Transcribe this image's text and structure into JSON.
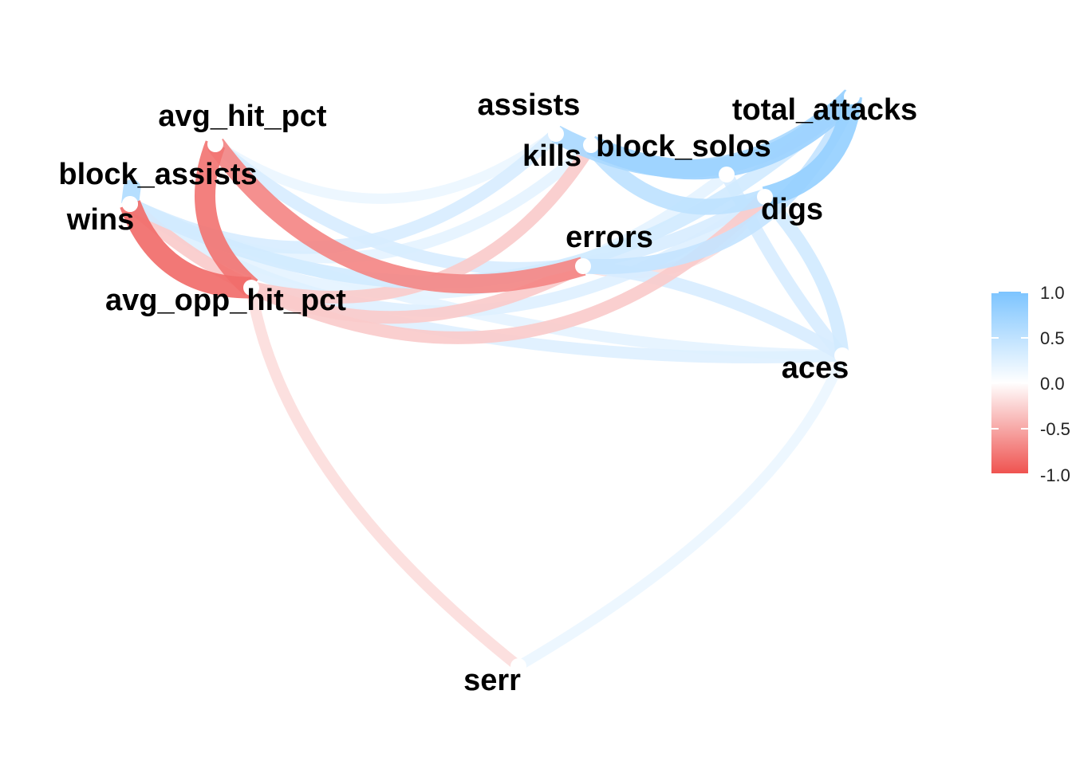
{
  "chart_data": {
    "type": "correlation-network",
    "legend": {
      "colors": [
        "#ef5350",
        "#ffffff",
        "#7cc4ff"
      ],
      "range": [
        -1,
        1
      ],
      "ticks": [
        "1.0",
        "0.5",
        "0.0",
        "-0.5",
        "-1.0"
      ]
    },
    "nodes": [
      {
        "id": "wins",
        "label": "wins"
      },
      {
        "id": "block_assists",
        "label": "block_assists"
      },
      {
        "id": "avg_hit_pct",
        "label": "avg_hit_pct"
      },
      {
        "id": "avg_opp_hit_pct",
        "label": "avg_opp_hit_pct"
      },
      {
        "id": "assists",
        "label": "assists"
      },
      {
        "id": "kills",
        "label": "kills"
      },
      {
        "id": "block_solos",
        "label": "block_solos"
      },
      {
        "id": "total_attacks",
        "label": "total_attacks"
      },
      {
        "id": "digs",
        "label": "digs"
      },
      {
        "id": "errors",
        "label": "errors"
      },
      {
        "id": "aces",
        "label": "aces"
      },
      {
        "id": "serr",
        "label": "serr"
      }
    ],
    "edges": [
      {
        "from": "wins",
        "to": "avg_opp_hit_pct",
        "r": -0.85
      },
      {
        "from": "avg_hit_pct",
        "to": "avg_opp_hit_pct",
        "r": -0.8
      },
      {
        "from": "avg_hit_pct",
        "to": "errors",
        "r": -0.7
      },
      {
        "from": "wins",
        "to": "block_assists",
        "r": 0.6
      },
      {
        "from": "wins",
        "to": "total_attacks",
        "r": 0.35
      },
      {
        "from": "avg_hit_pct",
        "to": "digs",
        "r": 0.3
      },
      {
        "from": "block_assists",
        "to": "assists",
        "r": 0.3
      },
      {
        "from": "block_assists",
        "to": "block_solos",
        "r": 0.2
      },
      {
        "from": "kills",
        "to": "total_attacks",
        "r": 0.75
      },
      {
        "from": "assists",
        "to": "total_attacks",
        "r": 0.65
      },
      {
        "from": "digs",
        "to": "total_attacks",
        "r": 0.8
      },
      {
        "from": "errors",
        "to": "total_attacks",
        "r": 0.45
      },
      {
        "from": "kills",
        "to": "digs",
        "r": 0.5
      },
      {
        "from": "block_solos",
        "to": "aces",
        "r": 0.3
      },
      {
        "from": "digs",
        "to": "aces",
        "r": 0.35
      },
      {
        "from": "errors",
        "to": "aces",
        "r": 0.3
      },
      {
        "from": "avg_opp_hit_pct",
        "to": "aces",
        "r": 0.25
      },
      {
        "from": "avg_opp_hit_pct",
        "to": "serr",
        "r": -0.2
      },
      {
        "from": "serr",
        "to": "aces",
        "r": 0.15
      },
      {
        "from": "wins",
        "to": "kills",
        "r": 0.2
      },
      {
        "from": "avg_opp_hit_pct",
        "to": "kills",
        "r": -0.3
      },
      {
        "from": "avg_opp_hit_pct",
        "to": "digs",
        "r": -0.3
      },
      {
        "from": "errors",
        "to": "digs",
        "r": -0.2
      },
      {
        "from": "wins",
        "to": "errors",
        "r": -0.3
      },
      {
        "from": "avg_hit_pct",
        "to": "assists",
        "r": 0.15
      },
      {
        "from": "block_assists",
        "to": "digs",
        "r": 0.25
      },
      {
        "from": "wins",
        "to": "aces",
        "r": 0.2
      }
    ]
  }
}
